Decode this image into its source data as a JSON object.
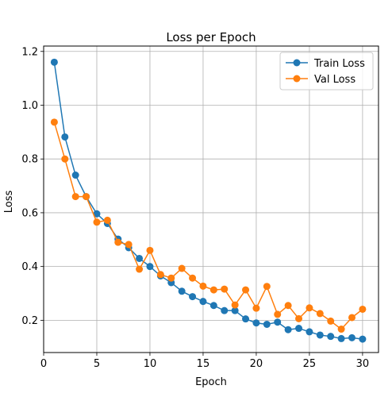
{
  "chart_data": {
    "type": "line",
    "title": "Loss per Epoch",
    "xlabel": "Epoch",
    "ylabel": "Loss",
    "xlim": [
      0,
      31.5
    ],
    "ylim": [
      0.08,
      1.22
    ],
    "xticks": [
      0,
      5,
      10,
      15,
      20,
      25,
      30
    ],
    "yticks": [
      0.2,
      0.4,
      0.6,
      0.8,
      1.0,
      1.2
    ],
    "ytick_labels": [
      "0.2",
      "0.4",
      "0.6",
      "0.8",
      "1.0",
      "1.2"
    ],
    "grid": true,
    "legend_position": "top-right",
    "x": [
      1,
      2,
      3,
      4,
      5,
      6,
      7,
      8,
      9,
      10,
      11,
      12,
      13,
      14,
      15,
      16,
      17,
      18,
      19,
      20,
      21,
      22,
      23,
      24,
      25,
      26,
      27,
      28,
      29,
      30
    ],
    "series": [
      {
        "name": "Train Loss",
        "color": "#1f77b4",
        "values": [
          1.16,
          0.882,
          0.74,
          0.66,
          0.596,
          0.56,
          0.502,
          0.47,
          0.43,
          0.4,
          0.365,
          0.34,
          0.308,
          0.288,
          0.27,
          0.255,
          0.236,
          0.236,
          0.205,
          0.19,
          0.185,
          0.193,
          0.165,
          0.17,
          0.157,
          0.145,
          0.14,
          0.132,
          0.135,
          0.13
        ]
      },
      {
        "name": "Val Loss",
        "color": "#ff7f0e",
        "values": [
          0.937,
          0.8,
          0.66,
          0.66,
          0.565,
          0.572,
          0.49,
          0.482,
          0.39,
          0.46,
          0.37,
          0.357,
          0.393,
          0.357,
          0.327,
          0.313,
          0.316,
          0.257,
          0.313,
          0.245,
          0.326,
          0.222,
          0.255,
          0.206,
          0.246,
          0.225,
          0.197,
          0.167,
          0.21,
          0.241
        ]
      }
    ]
  }
}
